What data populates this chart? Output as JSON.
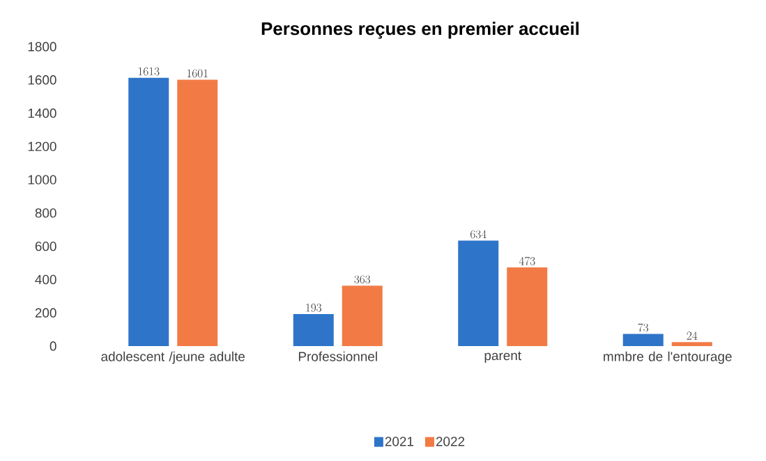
{
  "chart_data": {
    "type": "bar",
    "title": "Personnes reçues en premier accueil",
    "categories": [
      "adolescent /jeune adulte",
      "Professionnel",
      "parent",
      "mmbre de l'entourage"
    ],
    "series": [
      {
        "name": "2021",
        "color": "#2e75c9",
        "values": [
          1613,
          193,
          634,
          73
        ]
      },
      {
        "name": "2022",
        "color": "#f27b45",
        "values": [
          1601,
          363,
          473,
          24
        ]
      }
    ],
    "ylim": [
      0,
      1800
    ],
    "yticks": [
      0,
      200,
      400,
      600,
      800,
      1000,
      1200,
      1400,
      1600,
      1800
    ],
    "data_labels": true,
    "legend": "bottom",
    "grid": false
  }
}
